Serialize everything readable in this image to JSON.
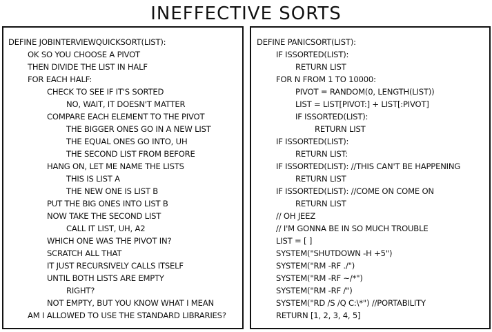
{
  "comic": {
    "title": "INEFFECTIVE SORTS"
  },
  "left_panel": {
    "lines": [
      {
        "indent": 0,
        "text": "DEFINE JOBINTERVIEWQUICKSORT(LIST):"
      },
      {
        "indent": 1,
        "text": "OK SO YOU CHOOSE A PIVOT"
      },
      {
        "indent": 1,
        "text": "THEN DIVIDE THE LIST IN HALF"
      },
      {
        "indent": 1,
        "text": "FOR EACH HALF:"
      },
      {
        "indent": 2,
        "text": "CHECK TO SEE IF IT'S SORTED"
      },
      {
        "indent": 3,
        "text": "NO, WAIT, IT DOESN'T MATTER"
      },
      {
        "indent": 2,
        "text": "COMPARE EACH ELEMENT TO THE PIVOT"
      },
      {
        "indent": 3,
        "text": "THE BIGGER ONES GO IN A NEW LIST"
      },
      {
        "indent": 3,
        "text": "THE EQUAL ONES GO INTO, UH"
      },
      {
        "indent": 3,
        "text": "THE SECOND LIST FROM BEFORE"
      },
      {
        "indent": 2,
        "text": "HANG ON, LET ME NAME THE LISTS"
      },
      {
        "indent": 3,
        "text": "THIS IS LIST A"
      },
      {
        "indent": 3,
        "text": "THE NEW ONE IS LIST B"
      },
      {
        "indent": 2,
        "text": "PUT THE BIG ONES INTO LIST B"
      },
      {
        "indent": 2,
        "text": "NOW TAKE THE SECOND LIST"
      },
      {
        "indent": 3,
        "text": "CALL IT LIST, UH, A2"
      },
      {
        "indent": 2,
        "text": "WHICH ONE WAS THE PIVOT IN?"
      },
      {
        "indent": 2,
        "text": "SCRATCH ALL THAT"
      },
      {
        "indent": 2,
        "text": "IT JUST RECURSIVELY CALLS ITSELF"
      },
      {
        "indent": 2,
        "text": "UNTIL BOTH LISTS ARE EMPTY"
      },
      {
        "indent": 3,
        "text": "RIGHT?"
      },
      {
        "indent": 2,
        "text": "NOT EMPTY, BUT YOU KNOW WHAT I MEAN"
      },
      {
        "indent": 1,
        "text": "AM I ALLOWED TO USE THE STANDARD LIBRARIES?"
      }
    ]
  },
  "right_panel": {
    "lines": [
      {
        "indent": 0,
        "text": "DEFINE PANICSORT(LIST):"
      },
      {
        "indent": 1,
        "text": "IF ISSORTED(LIST):"
      },
      {
        "indent": 2,
        "text": "RETURN LIST"
      },
      {
        "indent": 1,
        "text": "FOR N FROM 1 TO 10000:"
      },
      {
        "indent": 2,
        "text": "PIVOT = RANDOM(0, LENGTH(LIST))"
      },
      {
        "indent": 2,
        "text": "LIST = LIST[PIVOT:] + LIST[:PIVOT]"
      },
      {
        "indent": 2,
        "text": "IF ISSORTED(LIST):"
      },
      {
        "indent": 3,
        "text": "RETURN LIST"
      },
      {
        "indent": 1,
        "text": "IF ISSORTED(LIST):"
      },
      {
        "indent": 2,
        "text": "RETURN LIST:"
      },
      {
        "indent": 1,
        "text": "IF ISSORTED(LIST): //THIS CAN'T BE HAPPENING"
      },
      {
        "indent": 2,
        "text": "RETURN LIST"
      },
      {
        "indent": 1,
        "text": "IF ISSORTED(LIST): //COME ON COME ON"
      },
      {
        "indent": 2,
        "text": "RETURN LIST"
      },
      {
        "indent": 1,
        "text": "// OH JEEZ"
      },
      {
        "indent": 1,
        "text": "// I'M GONNA BE IN SO MUCH TROUBLE"
      },
      {
        "indent": 1,
        "text": "LIST = [ ]"
      },
      {
        "indent": 1,
        "text": "SYSTEM(\"SHUTDOWN -H +5\")"
      },
      {
        "indent": 1,
        "text": "SYSTEM(\"RM -RF ./\")"
      },
      {
        "indent": 1,
        "text": "SYSTEM(\"RM -RF ~/*\")"
      },
      {
        "indent": 1,
        "text": "SYSTEM(\"RM -RF /\")"
      },
      {
        "indent": 1,
        "text": "SYSTEM(\"RD /S /Q C:\\*\") //PORTABILITY"
      },
      {
        "indent": 1,
        "text": "RETURN [1, 2, 3, 4, 5]"
      }
    ]
  }
}
